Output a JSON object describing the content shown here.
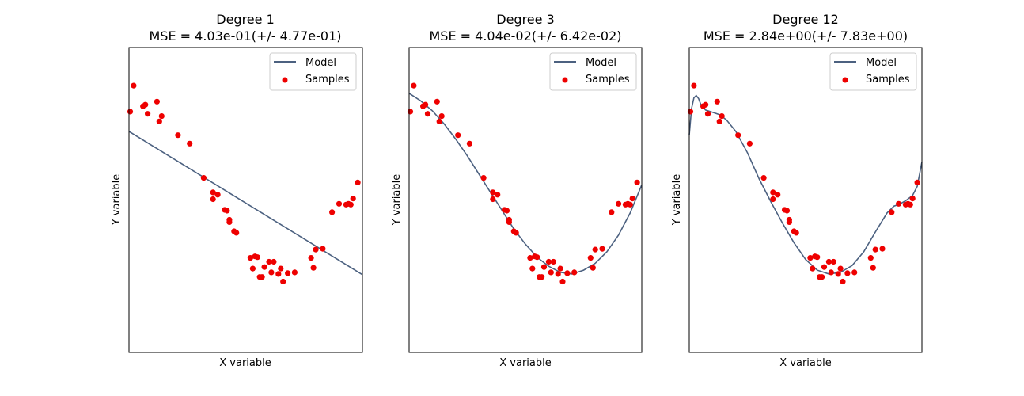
{
  "chart_data": [
    {
      "type": "line",
      "title": "Degree 1",
      "subtitle": "MSE = 4.03e-01(+/- 4.77e-01)",
      "xlabel": "X variable",
      "ylabel": "Y variable",
      "xlim": [
        0,
        1
      ],
      "ylim": [
        -2,
        2
      ],
      "legend": {
        "position": "top-right",
        "entries": [
          "Model",
          "Samples"
        ]
      },
      "colors": {
        "model": "#4c6180",
        "samples": "#ee0000"
      },
      "series": [
        {
          "name": "Model",
          "kind": "line",
          "x": [
            0,
            1
          ],
          "y": [
            0.9,
            -0.98
          ]
        },
        {
          "name": "Samples",
          "kind": "scatter",
          "x": [
            0.005,
            0.02,
            0.06,
            0.07,
            0.08,
            0.12,
            0.13,
            0.14,
            0.21,
            0.26,
            0.32,
            0.36,
            0.36,
            0.38,
            0.41,
            0.42,
            0.43,
            0.43,
            0.45,
            0.46,
            0.52,
            0.53,
            0.54,
            0.55,
            0.56,
            0.57,
            0.58,
            0.6,
            0.61,
            0.62,
            0.64,
            0.65,
            0.66,
            0.68,
            0.71,
            0.78,
            0.79,
            0.8,
            0.83,
            0.87,
            0.9,
            0.93,
            0.94,
            0.95,
            0.96,
            0.98
          ],
          "y": [
            1.16,
            1.5,
            1.23,
            1.25,
            1.13,
            1.29,
            1.03,
            1.1,
            0.85,
            0.74,
            0.29,
            0.01,
            0.1,
            0.07,
            -0.13,
            -0.14,
            -0.26,
            -0.29,
            -0.41,
            -0.43,
            -0.76,
            -0.9,
            -0.74,
            -0.75,
            -1.01,
            -1.01,
            -0.88,
            -0.81,
            -0.95,
            -0.81,
            -0.97,
            -0.9,
            -1.07,
            -0.96,
            -0.95,
            -0.76,
            -0.89,
            -0.65,
            -0.64,
            -0.16,
            -0.05,
            -0.06,
            -0.05,
            -0.06,
            0.02,
            0.23
          ]
        }
      ]
    },
    {
      "type": "line",
      "title": "Degree 3",
      "subtitle": "MSE = 4.04e-02(+/- 6.42e-02)",
      "xlabel": "X variable",
      "ylabel": "Y variable",
      "xlim": [
        0,
        1
      ],
      "ylim": [
        -2,
        2
      ],
      "legend": {
        "position": "top-right",
        "entries": [
          "Model",
          "Samples"
        ]
      },
      "colors": {
        "model": "#4c6180",
        "samples": "#ee0000"
      },
      "series": [
        {
          "name": "Model",
          "kind": "line",
          "x": [
            0,
            0.05,
            0.1,
            0.15,
            0.2,
            0.25,
            0.3,
            0.35,
            0.4,
            0.45,
            0.5,
            0.55,
            0.6,
            0.65,
            0.7,
            0.75,
            0.8,
            0.85,
            0.9,
            0.95,
            1.0
          ],
          "y": [
            1.4,
            1.3,
            1.17,
            1.0,
            0.8,
            0.58,
            0.34,
            0.1,
            -0.14,
            -0.38,
            -0.58,
            -0.75,
            -0.87,
            -0.95,
            -0.97,
            -0.92,
            -0.83,
            -0.68,
            -0.46,
            -0.17,
            0.2
          ]
        },
        {
          "name": "Samples",
          "kind": "scatter",
          "x": [
            0.005,
            0.02,
            0.06,
            0.07,
            0.08,
            0.12,
            0.13,
            0.14,
            0.21,
            0.26,
            0.32,
            0.36,
            0.36,
            0.38,
            0.41,
            0.42,
            0.43,
            0.43,
            0.45,
            0.46,
            0.52,
            0.53,
            0.54,
            0.55,
            0.56,
            0.57,
            0.58,
            0.6,
            0.61,
            0.62,
            0.64,
            0.65,
            0.66,
            0.68,
            0.71,
            0.78,
            0.79,
            0.8,
            0.83,
            0.87,
            0.9,
            0.93,
            0.94,
            0.95,
            0.96,
            0.98
          ],
          "y": [
            1.16,
            1.5,
            1.23,
            1.25,
            1.13,
            1.29,
            1.03,
            1.1,
            0.85,
            0.74,
            0.29,
            0.01,
            0.1,
            0.07,
            -0.13,
            -0.14,
            -0.26,
            -0.29,
            -0.41,
            -0.43,
            -0.76,
            -0.9,
            -0.74,
            -0.75,
            -1.01,
            -1.01,
            -0.88,
            -0.81,
            -0.95,
            -0.81,
            -0.97,
            -0.9,
            -1.07,
            -0.96,
            -0.95,
            -0.76,
            -0.89,
            -0.65,
            -0.64,
            -0.16,
            -0.05,
            -0.06,
            -0.05,
            -0.06,
            0.02,
            0.23
          ]
        }
      ]
    },
    {
      "type": "line",
      "title": "Degree 12",
      "subtitle": "MSE = 2.84e+00(+/- 7.83e+00)",
      "xlabel": "X variable",
      "ylabel": "Y variable",
      "xlim": [
        0,
        1
      ],
      "ylim": [
        -2,
        2
      ],
      "legend": {
        "position": "top-right",
        "entries": [
          "Model",
          "Samples"
        ]
      },
      "colors": {
        "model": "#4c6180",
        "samples": "#ee0000"
      },
      "series": [
        {
          "name": "Model",
          "kind": "line",
          "x": [
            0,
            0.01,
            0.02,
            0.03,
            0.04,
            0.05,
            0.07,
            0.1,
            0.13,
            0.16,
            0.2,
            0.25,
            0.3,
            0.35,
            0.4,
            0.45,
            0.5,
            0.55,
            0.6,
            0.65,
            0.7,
            0.75,
            0.8,
            0.85,
            0.88,
            0.9,
            0.93,
            0.96,
            0.98,
            1.0
          ],
          "y": [
            0.85,
            1.2,
            1.34,
            1.37,
            1.33,
            1.25,
            1.18,
            1.15,
            1.12,
            1.05,
            0.9,
            0.62,
            0.28,
            -0.02,
            -0.3,
            -0.56,
            -0.78,
            -0.92,
            -0.97,
            -0.95,
            -0.86,
            -0.68,
            -0.42,
            -0.17,
            -0.08,
            -0.06,
            -0.01,
            0.06,
            0.18,
            0.5
          ]
        },
        {
          "name": "Samples",
          "kind": "scatter",
          "x": [
            0.005,
            0.02,
            0.06,
            0.07,
            0.08,
            0.12,
            0.13,
            0.14,
            0.21,
            0.26,
            0.32,
            0.36,
            0.36,
            0.38,
            0.41,
            0.42,
            0.43,
            0.43,
            0.45,
            0.46,
            0.52,
            0.53,
            0.54,
            0.55,
            0.56,
            0.57,
            0.58,
            0.6,
            0.61,
            0.62,
            0.64,
            0.65,
            0.66,
            0.68,
            0.71,
            0.78,
            0.79,
            0.8,
            0.83,
            0.87,
            0.9,
            0.93,
            0.94,
            0.95,
            0.96,
            0.98
          ],
          "y": [
            1.16,
            1.5,
            1.23,
            1.25,
            1.13,
            1.29,
            1.03,
            1.1,
            0.85,
            0.74,
            0.29,
            0.01,
            0.1,
            0.07,
            -0.13,
            -0.14,
            -0.26,
            -0.29,
            -0.41,
            -0.43,
            -0.76,
            -0.9,
            -0.74,
            -0.75,
            -1.01,
            -1.01,
            -0.88,
            -0.81,
            -0.95,
            -0.81,
            -0.97,
            -0.9,
            -1.07,
            -0.96,
            -0.95,
            -0.76,
            -0.89,
            -0.65,
            -0.64,
            -0.16,
            -0.05,
            -0.06,
            -0.05,
            -0.06,
            0.02,
            0.23
          ]
        }
      ]
    }
  ]
}
